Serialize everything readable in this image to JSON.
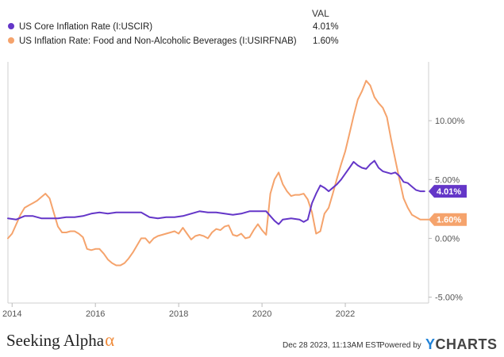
{
  "legend": {
    "value_header": "VAL",
    "items": [
      {
        "label": "US Core Inflation Rate (I:USCIR)",
        "value": "4.01%",
        "color": "#6436c8"
      },
      {
        "label": "US Inflation Rate: Food and Non-Alcoholic Beverages (I:USIRFNAB)",
        "value": "1.60%",
        "color": "#f5a36c"
      }
    ]
  },
  "chart_data": {
    "type": "line",
    "title": "",
    "xlabel": "",
    "ylabel": "",
    "x_ticks": [
      2014,
      2016,
      2018,
      2020,
      2022
    ],
    "x_tick_labels": [
      "2014",
      "2016",
      "2018",
      "2020",
      "2022"
    ],
    "y_ticks": [
      -5,
      0,
      5,
      10
    ],
    "y_tick_labels": [
      "-5.00%",
      "0.00%",
      "5.00%",
      "10.00%"
    ],
    "xlim": [
      2013.9,
      2024.0
    ],
    "ylim": [
      -5.5,
      15.0
    ],
    "grid": false,
    "series": [
      {
        "name": "US Core Inflation Rate (I:USCIR)",
        "color": "#6436c8",
        "end_label": "4.01%",
        "x": [
          2013.9,
          2014.1,
          2014.3,
          2014.5,
          2014.7,
          2014.9,
          2015.1,
          2015.3,
          2015.5,
          2015.7,
          2015.9,
          2016.1,
          2016.3,
          2016.5,
          2016.7,
          2016.9,
          2017.1,
          2017.3,
          2017.5,
          2017.7,
          2017.9,
          2018.1,
          2018.3,
          2018.5,
          2018.7,
          2018.9,
          2019.1,
          2019.3,
          2019.5,
          2019.7,
          2019.9,
          2020.1,
          2020.3,
          2020.4,
          2020.5,
          2020.7,
          2020.9,
          2021.0,
          2021.1,
          2021.2,
          2021.3,
          2021.4,
          2021.5,
          2021.6,
          2021.7,
          2021.8,
          2021.9,
          2022.0,
          2022.1,
          2022.2,
          2022.3,
          2022.4,
          2022.5,
          2022.6,
          2022.7,
          2022.8,
          2022.9,
          2023.0,
          2023.1,
          2023.2,
          2023.3,
          2023.4,
          2023.5,
          2023.6,
          2023.7,
          2023.8,
          2023.9
        ],
        "values": [
          1.7,
          1.6,
          1.9,
          1.9,
          1.7,
          1.7,
          1.7,
          1.8,
          1.8,
          1.9,
          2.1,
          2.2,
          2.1,
          2.2,
          2.2,
          2.2,
          2.2,
          1.8,
          1.7,
          1.8,
          1.8,
          1.9,
          2.1,
          2.3,
          2.2,
          2.2,
          2.1,
          2.0,
          2.1,
          2.3,
          2.3,
          2.3,
          1.5,
          1.2,
          1.6,
          1.7,
          1.6,
          1.4,
          1.6,
          3.0,
          3.8,
          4.5,
          4.3,
          4.0,
          4.3,
          4.6,
          5.0,
          5.5,
          6.0,
          6.5,
          6.2,
          6.0,
          5.9,
          6.3,
          6.6,
          6.0,
          5.7,
          5.6,
          5.5,
          5.6,
          5.3,
          4.8,
          4.7,
          4.4,
          4.1,
          4.0,
          4.0
        ]
      },
      {
        "name": "US Inflation Rate: Food and Non-Alcoholic Beverages (I:USIRFNAB)",
        "color": "#f5a36c",
        "end_label": "1.60%",
        "x": [
          2013.9,
          2014.0,
          2014.1,
          2014.2,
          2014.3,
          2014.4,
          2014.5,
          2014.6,
          2014.7,
          2014.8,
          2014.9,
          2015.0,
          2015.1,
          2015.2,
          2015.3,
          2015.4,
          2015.5,
          2015.6,
          2015.7,
          2015.8,
          2015.9,
          2016.0,
          2016.1,
          2016.2,
          2016.3,
          2016.4,
          2016.5,
          2016.6,
          2016.7,
          2016.8,
          2016.9,
          2017.0,
          2017.1,
          2017.2,
          2017.3,
          2017.4,
          2017.5,
          2017.6,
          2017.7,
          2017.8,
          2017.9,
          2018.0,
          2018.1,
          2018.2,
          2018.3,
          2018.4,
          2018.5,
          2018.6,
          2018.7,
          2018.8,
          2018.9,
          2019.0,
          2019.1,
          2019.2,
          2019.3,
          2019.4,
          2019.5,
          2019.6,
          2019.7,
          2019.8,
          2019.9,
          2020.0,
          2020.1,
          2020.2,
          2020.3,
          2020.4,
          2020.5,
          2020.6,
          2020.7,
          2020.8,
          2020.9,
          2021.0,
          2021.1,
          2021.2,
          2021.3,
          2021.4,
          2021.5,
          2021.6,
          2021.7,
          2021.8,
          2021.9,
          2022.0,
          2022.1,
          2022.2,
          2022.3,
          2022.4,
          2022.5,
          2022.6,
          2022.7,
          2022.8,
          2022.9,
          2023.0,
          2023.1,
          2023.2,
          2023.3,
          2023.4,
          2023.5,
          2023.6,
          2023.7,
          2023.8,
          2023.9,
          2024.0
        ],
        "values": [
          0.0,
          0.4,
          1.2,
          2.0,
          2.6,
          2.8,
          3.0,
          3.2,
          3.5,
          3.8,
          3.4,
          2.2,
          1.0,
          0.5,
          0.5,
          0.6,
          0.6,
          0.4,
          0.1,
          -0.9,
          -1.0,
          -0.9,
          -0.9,
          -1.3,
          -1.8,
          -2.1,
          -2.3,
          -2.3,
          -2.1,
          -1.7,
          -1.2,
          -0.6,
          0.0,
          0.0,
          -0.4,
          0.0,
          0.2,
          0.3,
          0.4,
          0.5,
          0.6,
          0.4,
          0.9,
          0.4,
          -0.1,
          0.2,
          0.3,
          0.2,
          0.0,
          0.5,
          0.8,
          0.7,
          1.0,
          1.1,
          0.3,
          0.2,
          0.4,
          0.0,
          0.1,
          0.7,
          1.2,
          0.7,
          0.3,
          3.8,
          5.0,
          5.6,
          4.6,
          4.0,
          3.6,
          3.7,
          3.7,
          3.8,
          3.3,
          2.2,
          0.4,
          0.6,
          2.1,
          2.6,
          3.8,
          5.1,
          6.3,
          7.4,
          8.9,
          10.4,
          11.8,
          12.5,
          13.4,
          13.0,
          12.0,
          11.5,
          11.1,
          10.3,
          8.4,
          6.7,
          5.0,
          3.4,
          2.6,
          2.0,
          1.8,
          1.6,
          1.6,
          1.6
        ]
      }
    ]
  },
  "footer": {
    "brand_name": "Seeking Alpha",
    "brand_symbol": "α",
    "timestamp": "Dec 28 2023, 11:13AM EST.",
    "powered_by": "Powered by",
    "provider_y": "Y",
    "provider_rest": "CHARTS"
  }
}
